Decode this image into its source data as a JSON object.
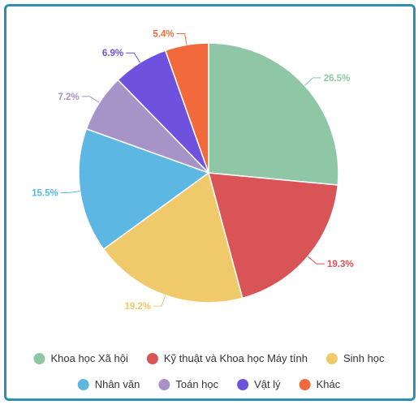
{
  "chart_data": {
    "type": "pie",
    "title": "",
    "series": [
      {
        "name": "Khoa học Xã hội",
        "value": 26.5,
        "label": "26.5%",
        "color": "#8ec6a6"
      },
      {
        "name": "Kỹ thuật và Khoa học Máy tính",
        "value": 19.3,
        "label": "19.3%",
        "color": "#d95457"
      },
      {
        "name": "Sinh học",
        "value": 19.2,
        "label": "19.2%",
        "color": "#efc96a"
      },
      {
        "name": "Nhân văn",
        "value": 15.5,
        "label": "15.5%",
        "color": "#5db7e3"
      },
      {
        "name": "Toán học",
        "value": 7.2,
        "label": "7.2%",
        "color": "#a893c9"
      },
      {
        "name": "Vật lý",
        "value": 6.9,
        "label": "6.9%",
        "color": "#6e51dc"
      },
      {
        "name": "Khác",
        "value": 5.4,
        "label": "5.4%",
        "color": "#f26a3b"
      }
    ],
    "legend_position": "bottom"
  }
}
